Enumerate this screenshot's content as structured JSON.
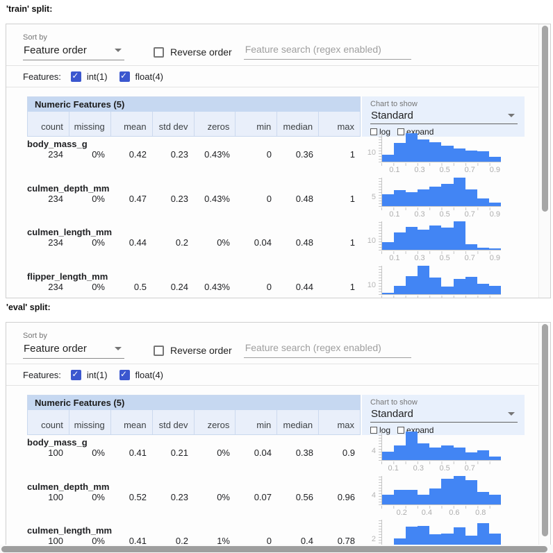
{
  "controls": {
    "sort_by_label": "Sort by",
    "sort_by_value": "Feature order",
    "reverse_order_label": "Reverse order",
    "search_placeholder": "Feature search (regex enabled)",
    "features_label": "Features:",
    "filters": [
      {
        "label": "int(1)",
        "checked": true
      },
      {
        "label": "float(4)",
        "checked": true
      }
    ],
    "chart_to_show_label": "Chart to show",
    "chart_type_value": "Standard",
    "log_label": "log",
    "expand_label": "expand"
  },
  "table": {
    "band_title": "Numeric Features (5)",
    "columns": [
      "count",
      "missing",
      "mean",
      "std dev",
      "zeros",
      "min",
      "median",
      "max"
    ]
  },
  "colors": {
    "bar_blue": "#4285f4",
    "checkbox_blue": "#3b57cf",
    "band_blue": "#c6d8f1",
    "chart_box_blue": "#e8f0fc"
  },
  "splits": [
    {
      "title": "'train' split:",
      "rows": [
        {
          "feature": "body_mass_g",
          "stats": [
            "234",
            "0%",
            "0.42",
            "0.23",
            "0.43%",
            "0",
            "0.36",
            "1"
          ],
          "hist": {
            "type": "histogram",
            "ytick": "10",
            "bars": [
              24,
              65,
              100,
              78,
              68,
              57,
              46,
              39,
              36,
              17
            ],
            "xticks": [
              {
                "label": "0.1",
                "pos": 11
              },
              {
                "label": "0.3",
                "pos": 32
              },
              {
                "label": "0.5",
                "pos": 53
              },
              {
                "label": "0.7",
                "pos": 74
              },
              {
                "label": "0.9",
                "pos": 95
              }
            ]
          }
        },
        {
          "feature": "culmen_depth_mm",
          "stats": [
            "234",
            "0%",
            "0.47",
            "0.23",
            "0.43%",
            "0",
            "0.48",
            "1"
          ],
          "hist": {
            "type": "histogram",
            "ytick": "5",
            "bars": [
              40,
              55,
              48,
              58,
              68,
              78,
              100,
              58,
              25,
              12
            ],
            "xticks": [
              {
                "label": "0.1",
                "pos": 11
              },
              {
                "label": "0.3",
                "pos": 32
              },
              {
                "label": "0.5",
                "pos": 53
              },
              {
                "label": "0.7",
                "pos": 74
              },
              {
                "label": "0.9",
                "pos": 95
              }
            ]
          }
        },
        {
          "feature": "culmen_length_mm",
          "stats": [
            "234",
            "0%",
            "0.44",
            "0.2",
            "0%",
            "0.04",
            "0.48",
            "1"
          ],
          "hist": {
            "type": "histogram",
            "ytick": "10",
            "bars": [
              28,
              62,
              80,
              70,
              85,
              78,
              100,
              20,
              8,
              5
            ],
            "xticks": [
              {
                "label": "0.1",
                "pos": 11
              },
              {
                "label": "0.3",
                "pos": 32
              },
              {
                "label": "0.5",
                "pos": 53
              },
              {
                "label": "0.7",
                "pos": 74
              },
              {
                "label": "0.9",
                "pos": 95
              }
            ]
          }
        },
        {
          "feature": "flipper_length_mm",
          "stats": [
            "234",
            "0%",
            "0.5",
            "0.24",
            "0.43%",
            "0",
            "0.44",
            "1"
          ],
          "hist": {
            "type": "histogram",
            "ytick": "10",
            "bars": [
              4,
              28,
              62,
              100,
              58,
              25,
              52,
              60,
              35,
              28
            ],
            "xticks": []
          }
        }
      ]
    },
    {
      "title": "'eval' split:",
      "rows": [
        {
          "feature": "body_mass_g",
          "stats": [
            "100",
            "0%",
            "0.41",
            "0.21",
            "0%",
            "0.04",
            "0.38",
            "0.9"
          ],
          "hist": {
            "type": "histogram",
            "ytick": "4",
            "bars": [
              30,
              52,
              100,
              58,
              45,
              52,
              45,
              28,
              35,
              12
            ],
            "xticks": [
              {
                "label": "0.1",
                "pos": 10
              },
              {
                "label": "0.3",
                "pos": 31
              },
              {
                "label": "0.5",
                "pos": 53
              },
              {
                "label": "0.7",
                "pos": 74
              }
            ]
          }
        },
        {
          "feature": "culmen_depth_mm",
          "stats": [
            "100",
            "0%",
            "0.52",
            "0.23",
            "0%",
            "0.07",
            "0.56",
            "0.96"
          ],
          "hist": {
            "type": "histogram",
            "ytick": "4",
            "bars": [
              32,
              50,
              50,
              32,
              55,
              88,
              100,
              85,
              42,
              32
            ],
            "xticks": [
              {
                "label": "0.2",
                "pos": 17
              },
              {
                "label": "0.4",
                "pos": 38
              },
              {
                "label": "0.6",
                "pos": 61
              },
              {
                "label": "0.8",
                "pos": 83
              }
            ]
          }
        },
        {
          "feature": "culmen_length_mm",
          "stats": [
            "100",
            "0%",
            "0.41",
            "0.2",
            "1%",
            "0",
            "0.4",
            "0.78"
          ],
          "hist": {
            "type": "histogram",
            "ytick": "2",
            "bars": [
              6,
              35,
              75,
              78,
              48,
              52,
              72,
              45,
              88,
              52
            ],
            "xticks": []
          }
        }
      ]
    }
  ]
}
